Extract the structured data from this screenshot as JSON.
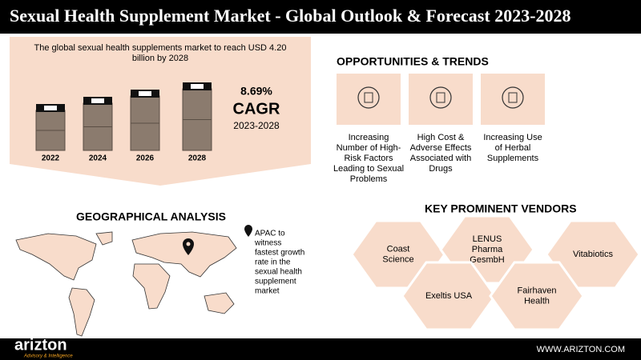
{
  "header": {
    "title": "Sexual Health Supplement Market - Global Outlook & Forecast 2023-2028"
  },
  "market": {
    "summary": [
      "The global sexual health supplements market to reach USD 4.20",
      "billion by 2028"
    ],
    "years": [
      "2022",
      "2024",
      "2026",
      "2028"
    ],
    "cagr_value": "8.69%",
    "cagr_label": "CAGR",
    "cagr_period": "2023-2028"
  },
  "opportunities": {
    "title": "OPPORTUNITIES & TRENDS",
    "items": [
      [
        "Increasing",
        "Number of High-",
        "Risk Factors",
        "Leading to Sexual",
        "Problems"
      ],
      [
        "High Cost &",
        "Adverse Effects",
        "Associated with",
        "Drugs"
      ],
      [
        "Increasing Use",
        "of Herbal",
        "Supplements"
      ]
    ]
  },
  "geo": {
    "title": "GEOGRAPHICAL ANALYSIS",
    "note": [
      "APAC to",
      "witness",
      "fastest growth",
      "rate in the",
      "sexual health",
      "supplement",
      "market"
    ]
  },
  "vendors": {
    "title": "KEY PROMINENT VENDORS",
    "items": [
      [
        "Coast",
        "Science"
      ],
      [
        "LENUS",
        "Pharma",
        "GesmbH"
      ],
      [
        "Vitabiotics"
      ],
      [
        "Exeltis USA"
      ],
      [
        "Fairhaven",
        "Health"
      ]
    ]
  },
  "footer": {
    "brand": "arizton",
    "tagline": "Advisory & Intelligence",
    "url": "WWW.ARIZTON.COM"
  }
}
